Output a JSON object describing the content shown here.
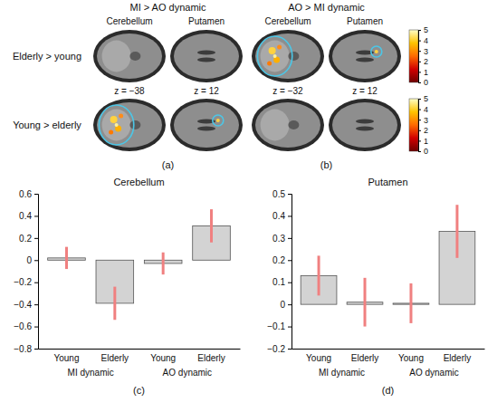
{
  "brain_panels": {
    "columns": [
      {
        "header": "MI > AO dynamic",
        "regions": [
          "Cerebellum",
          "Putamen"
        ],
        "panel_label": "(a)"
      },
      {
        "header": "AO > MI dynamic",
        "regions": [
          "Cerebellum",
          "Putamen"
        ],
        "panel_label": "(b)"
      }
    ],
    "rows": [
      "Elderly > young",
      "Young > elderly"
    ],
    "slice_labels": [
      "z = −38",
      "z = 12",
      "z = −32",
      "z = 12"
    ],
    "colorbars": [
      {
        "range": [
          0,
          5
        ],
        "ticks": [
          0,
          1,
          2,
          3,
          4,
          5
        ]
      },
      {
        "range": [
          0,
          5
        ],
        "ticks": [
          0,
          1,
          2,
          3,
          4,
          5
        ]
      }
    ]
  },
  "chart_data": [
    {
      "type": "bar",
      "title": "Cerebellum",
      "panel_label": "(c)",
      "categories": [
        "Young",
        "Elderly",
        "Young",
        "Elderly"
      ],
      "groups": [
        "MI dynamic",
        "AO dynamic"
      ],
      "values": [
        0.02,
        -0.39,
        -0.03,
        0.31
      ],
      "errors": [
        0.1,
        0.15,
        0.1,
        0.15
      ],
      "color": "#d3d3d3",
      "ylim": [
        -0.8,
        0.6
      ],
      "yticks": [
        {
          "value": -0.8,
          "label": "−0.8"
        },
        {
          "value": -0.6,
          "label": "−0.6"
        },
        {
          "value": -0.4,
          "label": "−0.4"
        },
        {
          "value": -0.2,
          "label": "−0.2"
        },
        0,
        0.2,
        0.4,
        0.6
      ]
    },
    {
      "type": "bar",
      "title": "Putamen",
      "panel_label": "(d)",
      "categories": [
        "Young",
        "Elderly",
        "Young",
        "Elderly"
      ],
      "groups": [
        "MI dynamic",
        "AO dynamic"
      ],
      "values": [
        0.13,
        0.01,
        0.005,
        0.33
      ],
      "errors": [
        0.09,
        0.11,
        0.09,
        0.12
      ],
      "color": "#d3d3d3",
      "ylim": [
        -0.2,
        0.5
      ],
      "yticks": [
        {
          "value": -0.2,
          "label": "−0.2"
        },
        {
          "value": -0.1,
          "label": "−0.1"
        },
        0,
        0.1,
        0.2,
        0.3,
        0.4,
        0.5
      ]
    }
  ]
}
